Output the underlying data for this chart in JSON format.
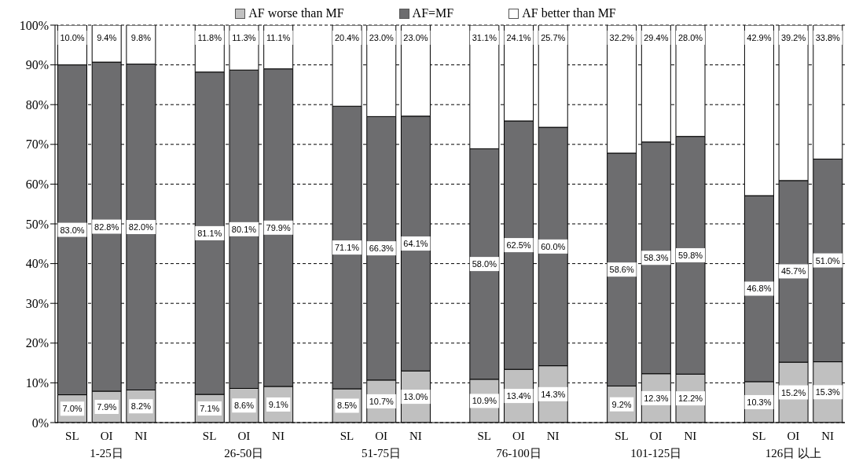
{
  "chart_data": {
    "type": "bar",
    "stacked": true,
    "categories": [
      "SL",
      "OI",
      "NI",
      null,
      "SL",
      "OI",
      "NI",
      null,
      "SL",
      "OI",
      "NI",
      null,
      "SL",
      "OI",
      "NI",
      null,
      "SL",
      "OI",
      "NI",
      null,
      "SL",
      "OI",
      "NI"
    ],
    "series": [
      {
        "name": "AF worse than MF",
        "color": "#c0c0c0",
        "values": [
          7.0,
          7.9,
          8.2,
          null,
          7.1,
          8.6,
          9.1,
          null,
          8.5,
          10.7,
          13.0,
          null,
          10.9,
          13.4,
          14.3,
          null,
          9.2,
          12.3,
          12.2,
          null,
          10.3,
          15.2,
          15.3
        ],
        "value_labels": [
          "7.0%",
          "7.9%",
          "8.2%",
          null,
          "7.1%",
          "8.6%",
          "9.1%",
          null,
          "8.5%",
          "10.7%",
          "13.0%",
          null,
          "10.9%",
          "13.4%",
          "14.3%",
          null,
          "9.2%",
          "12.3%",
          "12.2%",
          null,
          "10.3%",
          "15.2%",
          "15.3%"
        ]
      },
      {
        "name": "AF=MF",
        "color": "#6d6d6f",
        "values": [
          83.0,
          82.8,
          82.0,
          null,
          81.1,
          80.1,
          79.9,
          null,
          71.1,
          66.3,
          64.1,
          null,
          58.0,
          62.5,
          60.0,
          null,
          58.6,
          58.3,
          59.8,
          null,
          46.8,
          45.7,
          51.0
        ],
        "value_labels": [
          "83.0%",
          "82.8%",
          "82.0%",
          null,
          "81.1%",
          "80.1%",
          "79.9%",
          null,
          "71.1%",
          "66.3%",
          "64.1%",
          null,
          "58.0%",
          "62.5%",
          "60.0%",
          null,
          "58.6%",
          "58.3%",
          "59.8%",
          null,
          "46.8%",
          "45.7%",
          "51.0%"
        ]
      },
      {
        "name": "AF better than MF",
        "color": "#ffffff",
        "values": [
          10.0,
          9.4,
          9.8,
          null,
          11.8,
          11.3,
          11.1,
          null,
          20.4,
          23.0,
          23.0,
          null,
          31.1,
          24.1,
          25.7,
          null,
          32.2,
          29.4,
          28.0,
          null,
          42.9,
          39.2,
          33.8
        ],
        "value_labels": [
          "10.0%",
          "9.4%",
          "9.8%",
          null,
          "11.8%",
          "11.3%",
          "11.1%",
          null,
          "20.4%",
          "23.0%",
          "23.0%",
          null,
          "31.1%",
          "24.1%",
          "25.7%",
          null,
          "32.2%",
          "29.4%",
          "28.0%",
          null,
          "42.9%",
          "39.2%",
          "33.8%"
        ]
      }
    ],
    "annotations": [
      "1-25日",
      "26-50日",
      "51-75日",
      "76-100日",
      "101-125日",
      "126日 以上"
    ],
    "ylim": [
      0,
      100
    ],
    "yticks": [
      {
        "value": 0,
        "label": "0%"
      },
      {
        "value": 10,
        "label": "10%"
      },
      {
        "value": 20,
        "label": "20%"
      },
      {
        "value": 30,
        "label": "30%"
      },
      {
        "value": 40,
        "label": "40%"
      },
      {
        "value": 50,
        "label": "50%"
      },
      {
        "value": 60,
        "label": "60%"
      },
      {
        "value": 70,
        "label": "70%"
      },
      {
        "value": 80,
        "label": "80%"
      },
      {
        "value": 90,
        "label": "90%"
      },
      {
        "value": 100,
        "label": "100%"
      }
    ],
    "grid": "y",
    "legend": "top"
  }
}
